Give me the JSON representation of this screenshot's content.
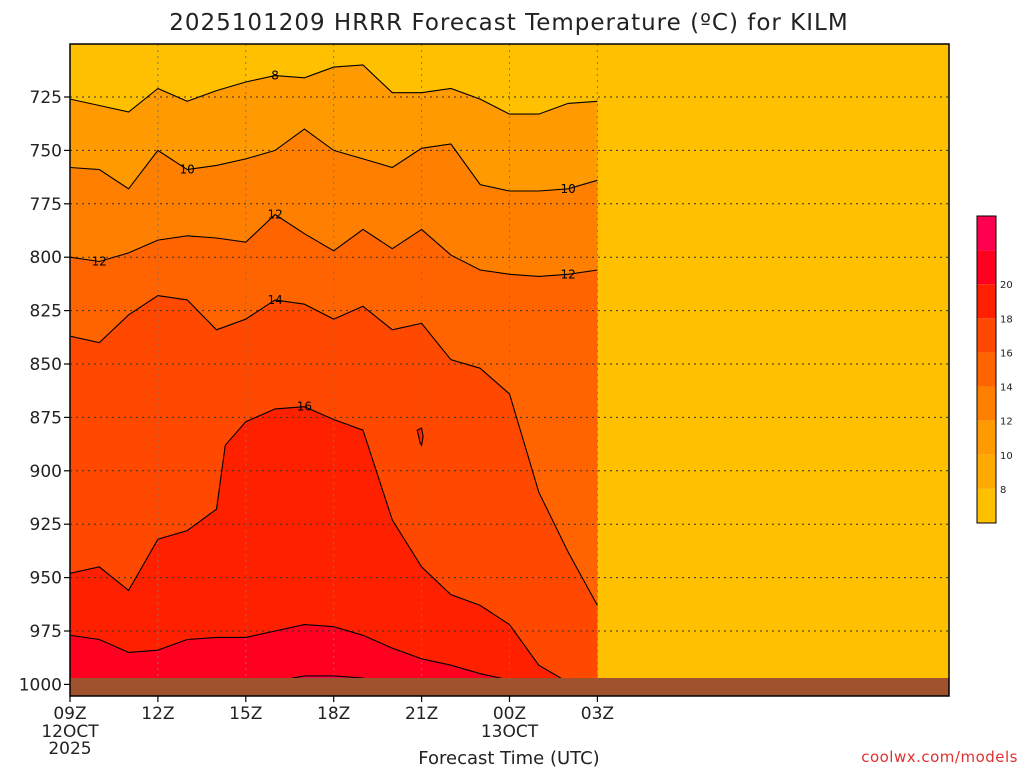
{
  "chart_data": {
    "type": "heatmap",
    "title": "2025101209 HRRR Forecast Temperature (ºC) for KILM",
    "xlabel": "Forecast Time (UTC)",
    "ylabel": "",
    "x_unit": "hours",
    "x_range": [
      9,
      39
    ],
    "x_ticks": [
      {
        "x": 9,
        "label": "09Z",
        "sub": [
          "12OCT",
          "2025"
        ]
      },
      {
        "x": 12,
        "label": "12Z",
        "sub": []
      },
      {
        "x": 15,
        "label": "15Z",
        "sub": []
      },
      {
        "x": 18,
        "label": "18Z",
        "sub": []
      },
      {
        "x": 21,
        "label": "21Z",
        "sub": []
      },
      {
        "x": 24,
        "label": "00Z",
        "sub": [
          "13OCT"
        ]
      },
      {
        "x": 27,
        "label": "03Z",
        "sub": []
      }
    ],
    "y_unit": "hPa",
    "y_ticks": [
      725,
      750,
      775,
      800,
      825,
      850,
      875,
      900,
      925,
      950,
      975,
      1000
    ],
    "grid": true,
    "surface_pressure_hpa": 1000,
    "levels": [
      6,
      8,
      10,
      12,
      14,
      16,
      18,
      20
    ],
    "colorbar": {
      "ticks": [
        8,
        10,
        12,
        14,
        16,
        18,
        20
      ],
      "colors": [
        "#ffc000",
        "#ffaa00",
        "#ff9a00",
        "#ff8000",
        "#ff6400",
        "#ff4800",
        "#ff2000",
        "#ff0020",
        "#ff0050"
      ]
    },
    "contours": [
      {
        "level": 8,
        "labels": [
          {
            "time": 16.0,
            "label": "8"
          }
        ],
        "points": [
          [
            9,
            726
          ],
          [
            10,
            729
          ],
          [
            11,
            732
          ],
          [
            12,
            721
          ],
          [
            13,
            727
          ],
          [
            14,
            722
          ],
          [
            15,
            718
          ],
          [
            16,
            715
          ],
          [
            17,
            716
          ],
          [
            18,
            711
          ],
          [
            19,
            710
          ],
          [
            20,
            723
          ],
          [
            21,
            723
          ],
          [
            22,
            721
          ],
          [
            23,
            726
          ],
          [
            24,
            733
          ],
          [
            25,
            733
          ],
          [
            26,
            728
          ],
          [
            27,
            727
          ]
        ]
      },
      {
        "level": 10,
        "labels": [
          {
            "time": 13.0,
            "label": "10"
          },
          {
            "time": 26.0,
            "label": "10"
          }
        ],
        "points": [
          [
            9,
            758
          ],
          [
            10,
            759
          ],
          [
            11,
            768
          ],
          [
            12,
            750
          ],
          [
            13,
            759
          ],
          [
            14,
            757
          ],
          [
            15,
            754
          ],
          [
            16,
            750
          ],
          [
            17,
            740
          ],
          [
            18,
            750
          ],
          [
            19,
            754
          ],
          [
            20,
            758
          ],
          [
            21,
            749
          ],
          [
            22,
            747
          ],
          [
            23,
            766
          ],
          [
            24,
            769
          ],
          [
            25,
            769
          ],
          [
            26,
            768
          ],
          [
            27,
            764
          ]
        ]
      },
      {
        "level": 12,
        "labels": [
          {
            "time": 10.0,
            "label": "12"
          },
          {
            "time": 16.0,
            "label": "12"
          },
          {
            "time": 26.0,
            "label": "12"
          }
        ],
        "points": [
          [
            9,
            800
          ],
          [
            10,
            802
          ],
          [
            11,
            798
          ],
          [
            12,
            792
          ],
          [
            13,
            790
          ],
          [
            14,
            791
          ],
          [
            15,
            793
          ],
          [
            16,
            780
          ],
          [
            17,
            789
          ],
          [
            18,
            797
          ],
          [
            19,
            787
          ],
          [
            20,
            796
          ],
          [
            21,
            787
          ],
          [
            22,
            799
          ],
          [
            23,
            806
          ],
          [
            24,
            808
          ],
          [
            25,
            809
          ],
          [
            26,
            808
          ],
          [
            27,
            806
          ]
        ]
      },
      {
        "level": 14,
        "labels": [
          {
            "time": 16.0,
            "label": "14"
          }
        ],
        "points": [
          [
            9,
            837
          ],
          [
            10,
            840
          ],
          [
            11,
            827
          ],
          [
            12,
            818
          ],
          [
            13,
            820
          ],
          [
            14,
            834
          ],
          [
            15,
            829
          ],
          [
            16,
            820
          ],
          [
            17,
            822
          ],
          [
            18,
            829
          ],
          [
            19,
            823
          ],
          [
            20,
            834
          ],
          [
            21,
            831
          ],
          [
            22,
            848
          ],
          [
            23,
            852
          ],
          [
            24,
            864
          ],
          [
            25,
            910
          ],
          [
            26,
            938
          ],
          [
            27,
            963
          ]
        ]
      },
      {
        "level": 16,
        "labels": [
          {
            "time": 17.0,
            "label": "16"
          }
        ],
        "points": [
          [
            9,
            948
          ],
          [
            10,
            945
          ],
          [
            11,
            956
          ],
          [
            12,
            932
          ],
          [
            13,
            928
          ],
          [
            14,
            918
          ],
          [
            14.3,
            888
          ],
          [
            15,
            877
          ],
          [
            16,
            871
          ],
          [
            17,
            870
          ],
          [
            18,
            876
          ],
          [
            19,
            881
          ],
          [
            20,
            923
          ],
          [
            21,
            945
          ],
          [
            22,
            958
          ],
          [
            23,
            963
          ],
          [
            24,
            972
          ],
          [
            25,
            991
          ],
          [
            26,
            999
          ],
          [
            27,
            1001
          ]
        ]
      },
      {
        "level": 18,
        "labels": [],
        "points": [
          [
            9,
            977
          ],
          [
            10,
            979
          ],
          [
            11,
            985
          ],
          [
            12,
            984
          ],
          [
            13,
            979
          ],
          [
            14,
            978
          ],
          [
            15,
            978
          ],
          [
            16,
            975
          ],
          [
            17,
            972
          ],
          [
            18,
            973
          ],
          [
            19,
            977
          ],
          [
            20,
            983
          ],
          [
            21,
            988
          ],
          [
            22,
            991
          ],
          [
            23,
            995
          ],
          [
            24,
            998
          ],
          [
            24.5,
            1001
          ]
        ]
      },
      {
        "level": 20,
        "labels": [],
        "points": [
          [
            16.0,
            1001
          ],
          [
            16.6,
            997
          ],
          [
            17.0,
            996
          ],
          [
            18.0,
            996
          ],
          [
            19.0,
            997
          ],
          [
            19.6,
            1001
          ]
        ]
      }
    ],
    "extra_contour": {
      "level": 16,
      "points": [
        [
          20.85,
          881
        ],
        [
          20.9,
          884
        ],
        [
          20.95,
          887
        ],
        [
          21.0,
          888
        ],
        [
          21.05,
          884
        ],
        [
          21.0,
          880
        ],
        [
          20.85,
          881
        ]
      ]
    }
  },
  "credit": "coolwx.com/models",
  "colors": {
    "surface": "#a0522d",
    "frame": "#000000",
    "credit": "#e03030"
  }
}
